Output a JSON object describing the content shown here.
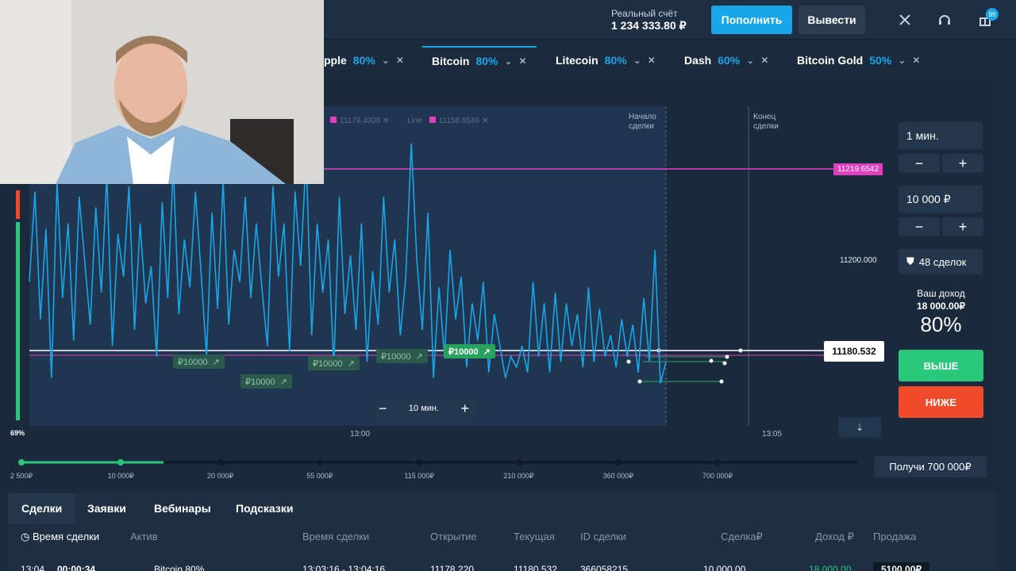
{
  "header": {
    "account_label": "Реальный счёт",
    "account_value": "1 234 333.80 ₽",
    "deposit_label": "Пополнить",
    "withdraw_label": "Вывести",
    "badge_count": "99",
    "icons": [
      "tools-icon",
      "headset-icon",
      "gift-icon"
    ]
  },
  "tabs": [
    {
      "name": "pple",
      "pct": "80%"
    },
    {
      "name": "Bitcoin",
      "pct": "80%"
    },
    {
      "name": "Litecoin",
      "pct": "80%"
    },
    {
      "name": "Dash",
      "pct": "60%"
    },
    {
      "name": "Bitcoin Gold",
      "pct": "50%"
    }
  ],
  "chart": {
    "indicator1_value": "11179.4308",
    "indicator2_label": "Line",
    "indicator2_value": "11158.6546",
    "start_label": "Начало сделки",
    "end_label": "Конец сделки",
    "resistance_value": "11219.6542",
    "level_label": "11200.000",
    "current_price": "11180.532",
    "time_left": "13:00",
    "time_right": "13:05",
    "zoom_label": "10 мин.",
    "sentiment": "69%",
    "trades": [
      "₽10000",
      "₽10000",
      "₽10000",
      "₽10000",
      "₽10000"
    ],
    "accent_colors": {
      "up": "#29c87a",
      "down": "#ef4b2b",
      "line": "#19a6e8",
      "pink": "#e040c0"
    }
  },
  "chart_data": {
    "type": "line",
    "title": "",
    "xlabel": "",
    "ylabel": "",
    "x_ticks": [
      "13:00",
      "13:05"
    ],
    "y_marks": [
      11219.6542,
      11200.0,
      11180.532
    ],
    "ylim": [
      11168,
      11228
    ],
    "series": [
      {
        "values": [
          11195,
          11212,
          11188,
          11205,
          11177,
          11214,
          11192,
          11206,
          11184,
          11211,
          11199,
          11187,
          11209,
          11193,
          11215,
          11183,
          11204,
          11196,
          11213,
          11186,
          11206,
          11191,
          11198,
          11181,
          11210,
          11192,
          11217,
          11189,
          11203,
          11194,
          11212,
          11197,
          11181,
          11208,
          11190,
          11214,
          11187,
          11201,
          11195,
          11211,
          11192,
          11206,
          11194,
          11183,
          11213,
          11196,
          11206,
          11182,
          11212,
          11198,
          11219,
          11185,
          11206,
          11193,
          11203,
          11179,
          11211,
          11189,
          11200,
          11186,
          11206,
          11180,
          11197,
          11187,
          11211,
          11193,
          11203,
          11185,
          11196,
          11221,
          11199,
          11186,
          11208,
          11177,
          11194,
          11181,
          11201,
          11188,
          11196,
          11179,
          11191,
          11184,
          11195,
          11178,
          11189,
          11183,
          11177,
          11181,
          11179,
          11183,
          11178,
          11195,
          11181,
          11191,
          11178,
          11193,
          11180,
          11191,
          11183,
          11189,
          11179,
          11194,
          11180,
          11190,
          11181,
          11185,
          11179,
          11188,
          11181,
          11187,
          11178,
          11192,
          11180,
          11201,
          11176,
          11180
        ]
      }
    ]
  },
  "side": {
    "duration": "1 мин.",
    "amount": "10 000 ₽",
    "trades_count": "48 сделок",
    "income_label": "Ваш доход",
    "income_value": "18 000.00₽",
    "payout": "80%",
    "up_label": "ВЫШЕ",
    "down_label": "НИЖЕ"
  },
  "progress": {
    "levels": [
      "2 500₽",
      "10 000₽",
      "20 000₽",
      "55 000₽",
      "115 000₽",
      "210 000₽",
      "360 000₽",
      "700 000₽"
    ],
    "progress_fraction": 0.17,
    "reward_label": "Получи 700 000₽"
  },
  "bottom": {
    "tabs": [
      "Сделки",
      "Заявки",
      "Вебинары",
      "Подсказки"
    ],
    "headers": [
      "Время сделки",
      "Актив",
      "Время сделки",
      "Открытие",
      "Текущая",
      "ID сделки",
      "Сделка₽",
      "Доход ₽",
      "Продажа"
    ],
    "row": [
      "13:04",
      "00:00:34",
      "Bitcoin 80%",
      "13:03:16 - 13:04:16",
      "11178.220",
      "11180.532",
      "366058215",
      "10 000.00",
      "18 000.00",
      "5100.00₽"
    ]
  }
}
